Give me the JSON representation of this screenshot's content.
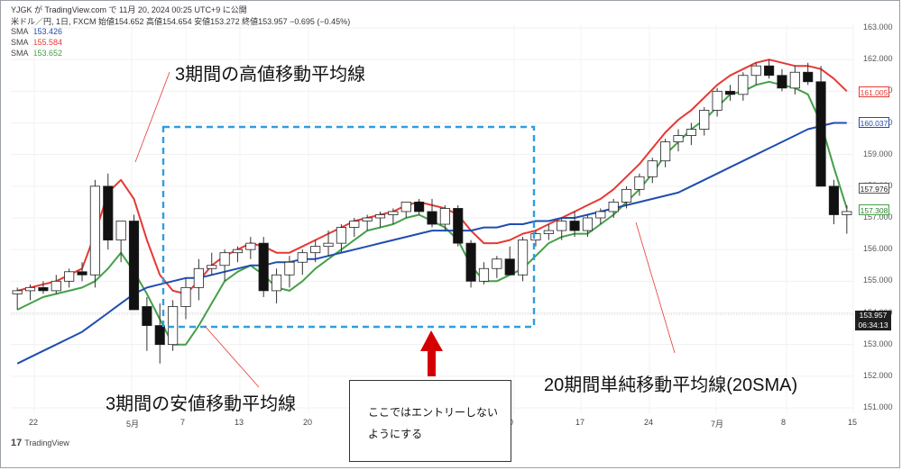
{
  "header": {
    "line1": "YJGK が TradingView.com で 11月 20, 2024 00:25 UTC+9 に公開",
    "line2": "米ドル／円, 1日, FXCM  始値154.652  高値154.654  安値153.272  終値153.957  −0.695 (−0.45%)"
  },
  "sma_legend": [
    {
      "label": "SMA",
      "value": "153.426",
      "color": "#1f4db0"
    },
    {
      "label": "SMA",
      "value": "155.584",
      "color": "#e53935"
    },
    {
      "label": "SMA",
      "value": "153.652",
      "color": "#43a047"
    }
  ],
  "annotations": {
    "high_label": "3期間の高値移動平均線",
    "low_label": "3期間の安値移動平均線",
    "sma20_label": "20期間単純移動平均線(20SMA)",
    "note_text": "ここではエントリーしないようにする"
  },
  "price_tags": {
    "red": "161.005",
    "blue": "160.037",
    "black": "157.976",
    "green": "157.308",
    "last_price": "153.957",
    "countdown": "06:34:13"
  },
  "tv_brand": {
    "mark": "17",
    "name": "TradingView"
  },
  "chart_data": {
    "type": "candlestick",
    "title": "米ドル／円, 1日, FXCM",
    "y_range": [
      151,
      163
    ],
    "y_ticks": [
      "163.000",
      "162.000",
      "161.000",
      "160.000",
      "159.000",
      "158.000",
      "157.000",
      "156.000",
      "155.000",
      "154.000",
      "153.000",
      "152.000",
      "151.000"
    ],
    "x_ticks": [
      "22",
      "5月",
      "7",
      "13",
      "20",
      "0",
      "17",
      "24",
      "7月",
      "8",
      "15"
    ],
    "candles": [
      [
        154.6,
        154.8,
        154.1,
        154.7
      ],
      [
        154.7,
        154.9,
        154.4,
        154.8
      ],
      [
        154.8,
        155.0,
        154.6,
        154.7
      ],
      [
        154.7,
        155.2,
        154.6,
        155.0
      ],
      [
        155.0,
        155.4,
        154.8,
        155.3
      ],
      [
        155.3,
        155.6,
        155.0,
        155.2
      ],
      [
        155.2,
        158.2,
        154.8,
        158.0
      ],
      [
        158.0,
        158.4,
        156.0,
        156.3
      ],
      [
        156.3,
        156.9,
        155.6,
        156.9
      ],
      [
        156.9,
        157.1,
        154.2,
        154.1
      ],
      [
        154.2,
        154.5,
        152.8,
        153.6
      ],
      [
        153.6,
        154.3,
        152.4,
        153.0
      ],
      [
        153.0,
        154.4,
        152.8,
        154.2
      ],
      [
        154.2,
        155.1,
        153.8,
        154.8
      ],
      [
        154.8,
        155.7,
        154.4,
        155.4
      ],
      [
        155.4,
        155.9,
        155.2,
        155.5
      ],
      [
        155.5,
        156.0,
        155.0,
        155.9
      ],
      [
        155.9,
        156.1,
        155.6,
        156.0
      ],
      [
        156.0,
        156.4,
        155.7,
        156.2
      ],
      [
        156.2,
        156.4,
        154.5,
        154.7
      ],
      [
        154.7,
        155.4,
        154.3,
        155.2
      ],
      [
        155.2,
        155.8,
        154.8,
        155.6
      ],
      [
        155.6,
        156.0,
        155.2,
        155.9
      ],
      [
        155.9,
        156.3,
        155.6,
        156.1
      ],
      [
        156.1,
        156.6,
        155.8,
        156.2
      ],
      [
        156.2,
        156.8,
        155.9,
        156.7
      ],
      [
        156.7,
        157.0,
        156.4,
        156.9
      ],
      [
        156.9,
        157.1,
        156.6,
        157.0
      ],
      [
        157.0,
        157.2,
        156.7,
        157.1
      ],
      [
        157.1,
        157.3,
        156.8,
        157.2
      ],
      [
        157.2,
        157.5,
        157.0,
        157.5
      ],
      [
        157.5,
        157.6,
        157.1,
        157.2
      ],
      [
        157.2,
        157.6,
        156.7,
        156.8
      ],
      [
        156.8,
        157.4,
        156.6,
        157.3
      ],
      [
        157.3,
        157.4,
        156.1,
        156.2
      ],
      [
        156.2,
        156.3,
        154.8,
        155.0
      ],
      [
        155.0,
        155.6,
        154.9,
        155.4
      ],
      [
        155.4,
        155.8,
        155.1,
        155.7
      ],
      [
        155.7,
        156.1,
        155.2,
        155.2
      ],
      [
        155.2,
        156.4,
        155.0,
        156.3
      ],
      [
        156.3,
        156.6,
        156.1,
        156.5
      ],
      [
        156.5,
        156.8,
        156.3,
        156.6
      ],
      [
        156.6,
        157.0,
        156.3,
        156.9
      ],
      [
        156.9,
        157.2,
        156.4,
        156.6
      ],
      [
        156.6,
        157.1,
        156.4,
        157.0
      ],
      [
        157.0,
        157.3,
        156.8,
        157.2
      ],
      [
        157.2,
        157.6,
        157.0,
        157.5
      ],
      [
        157.5,
        158.0,
        157.3,
        157.9
      ],
      [
        157.9,
        158.4,
        157.7,
        158.3
      ],
      [
        158.3,
        158.9,
        158.1,
        158.8
      ],
      [
        158.8,
        159.5,
        158.6,
        159.4
      ],
      [
        159.4,
        159.8,
        159.1,
        159.6
      ],
      [
        159.6,
        160.0,
        159.3,
        159.8
      ],
      [
        159.8,
        160.5,
        159.6,
        160.4
      ],
      [
        160.4,
        161.1,
        160.2,
        161.0
      ],
      [
        161.0,
        161.2,
        160.7,
        160.9
      ],
      [
        160.9,
        161.6,
        160.7,
        161.5
      ],
      [
        161.5,
        161.9,
        161.2,
        161.8
      ],
      [
        161.8,
        162.0,
        161.4,
        161.5
      ],
      [
        161.5,
        161.7,
        161.0,
        161.1
      ],
      [
        161.1,
        161.8,
        160.9,
        161.6
      ],
      [
        161.6,
        161.9,
        161.2,
        161.3
      ],
      [
        161.3,
        161.8,
        158.0,
        158.0
      ],
      [
        158.0,
        158.2,
        156.8,
        157.1
      ],
      [
        157.1,
        157.4,
        156.5,
        157.2
      ]
    ],
    "series": [
      {
        "name": "SMA",
        "color": "#e53935",
        "values": [
          154.7,
          154.8,
          154.9,
          155.0,
          155.2,
          155.4,
          156.5,
          157.8,
          158.2,
          157.6,
          156.3,
          155.2,
          154.7,
          154.6,
          155.0,
          155.5,
          155.8,
          156.0,
          156.2,
          156.1,
          155.9,
          155.9,
          156.1,
          156.3,
          156.5,
          156.7,
          156.9,
          157.0,
          157.1,
          157.2,
          157.4,
          157.5,
          157.4,
          157.3,
          157.1,
          156.6,
          156.2,
          156.2,
          156.3,
          156.5,
          156.6,
          156.8,
          157.0,
          157.2,
          157.4,
          157.6,
          157.9,
          158.3,
          158.7,
          159.2,
          159.7,
          160.1,
          160.4,
          160.8,
          161.2,
          161.5,
          161.7,
          161.9,
          162.0,
          161.9,
          161.8,
          161.8,
          161.7,
          161.4,
          161.0
        ]
      },
      {
        "name": "SMA",
        "color": "#43a047",
        "values": [
          154.1,
          154.3,
          154.5,
          154.6,
          154.7,
          154.8,
          155.0,
          155.4,
          155.9,
          155.3,
          154.6,
          153.8,
          153.0,
          153.0,
          153.6,
          154.3,
          155.0,
          155.3,
          155.5,
          155.2,
          154.8,
          154.7,
          155.0,
          155.4,
          155.7,
          156.0,
          156.3,
          156.6,
          156.7,
          156.8,
          157.0,
          157.1,
          156.9,
          156.7,
          156.3,
          155.5,
          155.0,
          155.0,
          155.2,
          155.4,
          155.8,
          156.2,
          156.4,
          156.5,
          156.5,
          156.8,
          157.1,
          157.5,
          157.9,
          158.4,
          159.0,
          159.4,
          159.8,
          160.1,
          160.5,
          160.9,
          161.0,
          161.2,
          161.3,
          161.2,
          161.1,
          160.9,
          160.0,
          158.6,
          157.3
        ]
      },
      {
        "name": "SMA",
        "color": "#1f4db0",
        "values": [
          152.4,
          152.6,
          152.8,
          153.0,
          153.2,
          153.4,
          153.7,
          154.0,
          154.3,
          154.6,
          154.8,
          154.9,
          155.0,
          155.1,
          155.1,
          155.2,
          155.3,
          155.4,
          155.5,
          155.5,
          155.6,
          155.6,
          155.7,
          155.7,
          155.8,
          155.9,
          156.0,
          156.1,
          156.2,
          156.3,
          156.4,
          156.5,
          156.6,
          156.6,
          156.6,
          156.6,
          156.7,
          156.7,
          156.8,
          156.8,
          156.9,
          156.9,
          157.0,
          157.0,
          157.1,
          157.2,
          157.3,
          157.4,
          157.5,
          157.6,
          157.7,
          157.8,
          158.0,
          158.2,
          158.4,
          158.6,
          158.8,
          159.0,
          159.2,
          159.4,
          159.6,
          159.8,
          159.9,
          160.0,
          160.0
        ]
      }
    ]
  }
}
